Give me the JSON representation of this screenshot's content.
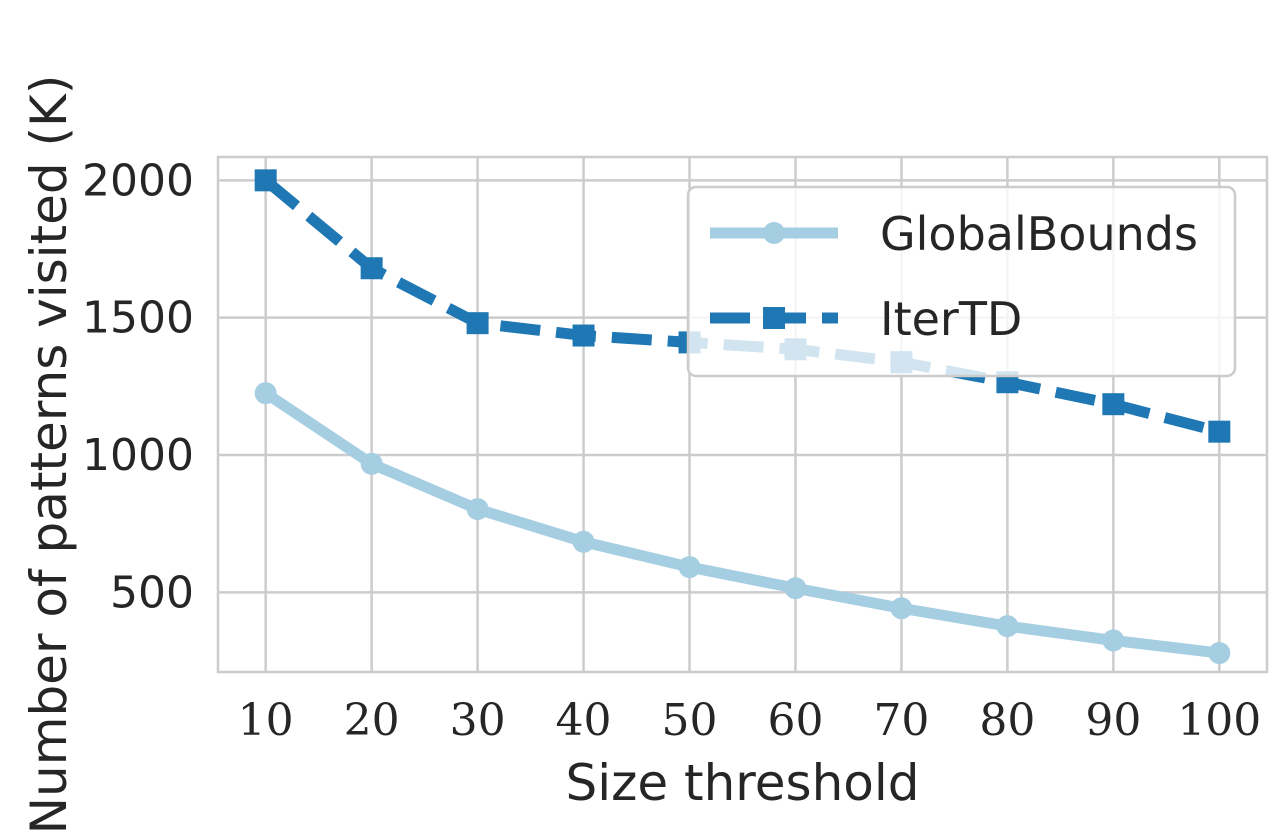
{
  "chart_data": {
    "type": "line",
    "xlabel": "Size threshold",
    "ylabel": "Number of patterns visited (K)",
    "x": [
      10,
      20,
      30,
      40,
      50,
      60,
      70,
      80,
      90,
      100
    ],
    "xlim": [
      5.5,
      104.5
    ],
    "ylim": [
      210,
      2085
    ],
    "yticks": [
      500,
      1000,
      1500,
      2000
    ],
    "grid": true,
    "legend_position": "upper-right",
    "series": [
      {
        "name": "GlobalBounds",
        "values": [
          1225,
          968,
          803,
          684,
          592,
          515,
          442,
          377,
          325,
          279
        ],
        "color": "#a6cee3",
        "line_style": "solid",
        "marker": "circle"
      },
      {
        "name": "IterTD",
        "values": [
          2000,
          1680,
          1480,
          1435,
          1410,
          1385,
          1338,
          1265,
          1185,
          1085
        ],
        "color": "#1f78b4",
        "line_style": "dashed",
        "marker": "square"
      }
    ]
  }
}
